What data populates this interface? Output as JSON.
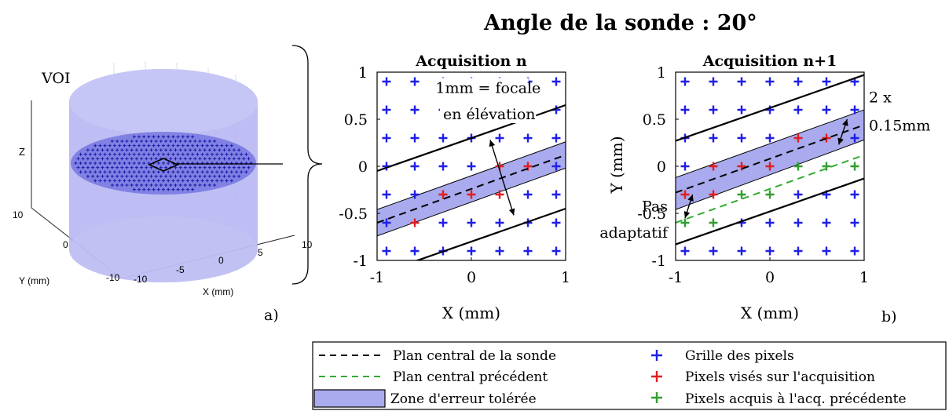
{
  "main_title": "Angle de la sonde : 20°",
  "voi_panel": {
    "voi_label": "VOI",
    "z_label": "Z",
    "y_label": "Y (mm)",
    "x_label": "X (mm)",
    "y_ticks": [
      "10",
      "0",
      "-10"
    ],
    "x_ticks": [
      "-10",
      "-5",
      "0",
      "5",
      "10"
    ],
    "panel_label": "a)",
    "cylinder_color": "#b3b3f2",
    "marker_color": "#1a1aa6"
  },
  "chart_data": [
    {
      "type": "scatter",
      "title": "Acquisition n",
      "xlabel": "X (mm)",
      "ylabel": "",
      "xlim": [
        -1,
        1
      ],
      "ylim": [
        -1,
        1
      ],
      "xticks": [
        "-1",
        "0",
        "1"
      ],
      "yticks": [
        "1",
        "0.5",
        "0",
        "-0.5",
        "-1"
      ],
      "grid_points": {
        "x": [
          -0.9,
          -0.6,
          -0.3,
          0.0,
          0.3,
          0.6,
          0.9
        ],
        "y": [
          0.9,
          0.6,
          0.3,
          0.0,
          -0.3,
          -0.6,
          -0.9
        ]
      },
      "targeted_pixels": [
        [
          -0.6,
          -0.6
        ],
        [
          -0.3,
          -0.3
        ],
        [
          0.0,
          -0.3
        ],
        [
          0.3,
          -0.3
        ],
        [
          0.3,
          0.0
        ],
        [
          0.6,
          0.0
        ]
      ],
      "acquired_pixels": [],
      "lines": [
        {
          "role": "central-plane",
          "style": "dashed",
          "color": "#000000",
          "x": [
            -1,
            1
          ],
          "y": [
            -0.6,
            0.12
          ]
        },
        {
          "role": "tolerance-zone",
          "fill": "#aaaaee",
          "x": [
            -1,
            1
          ],
          "y_low": [
            -0.74,
            -0.02
          ],
          "y_high": [
            -0.46,
            0.26
          ]
        },
        {
          "role": "focal-upper",
          "style": "solid",
          "color": "#000000",
          "x": [
            -1,
            1
          ],
          "y": [
            -0.05,
            0.65
          ]
        },
        {
          "role": "focal-lower",
          "style": "solid",
          "color": "#000000",
          "x": [
            -1,
            1
          ],
          "y": [
            -1.15,
            -0.45
          ]
        }
      ],
      "annotations": [
        {
          "text": "1mm = focale",
          "x": -0.38,
          "y": 0.78
        },
        {
          "text": "en élévation",
          "x": -0.3,
          "y": 0.5
        }
      ],
      "arrow": {
        "x1": 0.2,
        "y1": 0.28,
        "x2": 0.45,
        "y2": -0.52
      }
    },
    {
      "type": "scatter",
      "title": "Acquisition n+1",
      "xlabel": "X (mm)",
      "ylabel": "Y (mm)",
      "xlim": [
        -1,
        1
      ],
      "ylim": [
        -1,
        1
      ],
      "xticks": [
        "-1",
        "0",
        "1"
      ],
      "yticks": [
        "1",
        "0.5",
        "0",
        "-0.5",
        "-1"
      ],
      "grid_points": {
        "x": [
          -0.9,
          -0.6,
          -0.3,
          0.0,
          0.3,
          0.6,
          0.9
        ],
        "y": [
          0.9,
          0.6,
          0.3,
          0.0,
          -0.3,
          -0.6,
          -0.9
        ]
      },
      "targeted_pixels": [
        [
          -0.9,
          -0.3
        ],
        [
          -0.6,
          -0.3
        ],
        [
          -0.6,
          0.0
        ],
        [
          -0.3,
          0.0
        ],
        [
          0.0,
          0.0
        ],
        [
          0.3,
          0.3
        ],
        [
          0.6,
          0.3
        ]
      ],
      "acquired_pixels": [
        [
          -0.9,
          -0.6
        ],
        [
          -0.6,
          -0.6
        ],
        [
          -0.3,
          -0.3
        ],
        [
          0.0,
          -0.3
        ],
        [
          0.3,
          0.0
        ],
        [
          0.6,
          0.0
        ],
        [
          0.9,
          0.0
        ]
      ],
      "lines": [
        {
          "role": "central-plane",
          "style": "dashed",
          "color": "#000000",
          "x": [
            -1,
            1
          ],
          "y": [
            -0.28,
            0.44
          ]
        },
        {
          "role": "tolerance-zone",
          "fill": "#aaaaee",
          "x": [
            -1,
            1
          ],
          "y_low": [
            -0.46,
            0.28
          ],
          "y_high": [
            -0.12,
            0.6
          ]
        },
        {
          "role": "previous-central-plane",
          "style": "dashed",
          "color": "#33aa33",
          "x": [
            -1,
            1
          ],
          "y": [
            -0.6,
            0.12
          ]
        },
        {
          "role": "focal-upper",
          "style": "solid",
          "color": "#000000",
          "x": [
            -1,
            1
          ],
          "y": [
            0.27,
            0.97
          ]
        },
        {
          "role": "focal-lower",
          "style": "solid",
          "color": "#000000",
          "x": [
            -1,
            1
          ],
          "y": [
            -0.83,
            -0.13
          ]
        }
      ],
      "annotations": [
        {
          "text": "2 x",
          "x": 1.07,
          "y": 0.68
        },
        {
          "text": "0.15mm",
          "x": 1.07,
          "y": 0.38
        },
        {
          "text": "Pas",
          "x": -1.06,
          "y": -0.48
        },
        {
          "text": "adaptatif",
          "x": -1.06,
          "y": -0.76
        },
        {
          "text": "b)",
          "x": 1.2,
          "y": -1.6
        }
      ],
      "arrows": [
        {
          "x1": 0.82,
          "y1": 0.5,
          "x2": 0.73,
          "y2": 0.23
        },
        {
          "x1": -0.9,
          "y1": -0.55,
          "x2": -0.82,
          "y2": -0.3
        }
      ]
    }
  ],
  "legend": {
    "items": [
      {
        "label": "Plan central de la sonde",
        "symbol": "dashed-black"
      },
      {
        "label": "Plan central précédent",
        "symbol": "dashed-green"
      },
      {
        "label": "Zone d'erreur tolérée",
        "symbol": "blue-box"
      },
      {
        "label": "Grille des pixels",
        "symbol": "blue-plus"
      },
      {
        "label": "Pixels visés sur l'acquisition",
        "symbol": "red-plus"
      },
      {
        "label": "Pixels acquis à l'acq. précédente",
        "symbol": "green-plus"
      }
    ]
  },
  "colors": {
    "grid_plus": "#1f1fe6",
    "targeted_plus": "#e01e1e",
    "acquired_plus": "#2f9f2f",
    "zone_fill": "#aaaaee",
    "previous_plane": "#33aa33"
  }
}
